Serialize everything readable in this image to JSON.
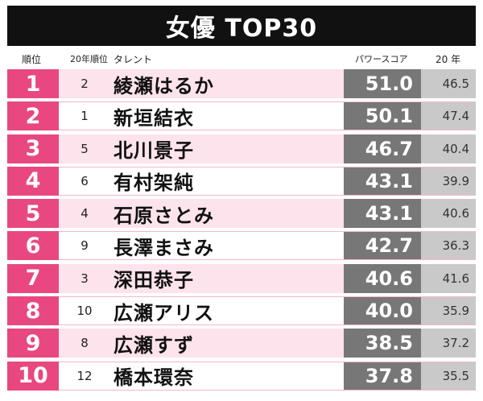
{
  "title": "女優 TOP30",
  "headers": {
    "rank": "順位",
    "prev_rank": "20年順位",
    "talent": "タレント",
    "power": "パワースコア",
    "y20": "20 年"
  },
  "rows": [
    {
      "rank": "1",
      "prev": "2",
      "name": "綾瀬はるか",
      "power": "51.0",
      "y20": "46.5"
    },
    {
      "rank": "2",
      "prev": "1",
      "name": "新垣結衣",
      "power": "50.1",
      "y20": "47.4"
    },
    {
      "rank": "3",
      "prev": "5",
      "name": "北川景子",
      "power": "46.7",
      "y20": "40.4"
    },
    {
      "rank": "4",
      "prev": "6",
      "name": "有村架純",
      "power": "43.1",
      "y20": "39.9"
    },
    {
      "rank": "5",
      "prev": "4",
      "name": "石原さとみ",
      "power": "43.1",
      "y20": "40.6"
    },
    {
      "rank": "6",
      "prev": "9",
      "name": "長澤まさみ",
      "power": "42.7",
      "y20": "36.3"
    },
    {
      "rank": "7",
      "prev": "3",
      "name": "深田恭子",
      "power": "40.6",
      "y20": "41.6"
    },
    {
      "rank": "8",
      "prev": "10",
      "name": "広瀬アリス",
      "power": "40.0",
      "y20": "35.9"
    },
    {
      "rank": "9",
      "prev": "8",
      "name": "広瀬すず",
      "power": "38.5",
      "y20": "37.2"
    },
    {
      "rank": "10",
      "prev": "12",
      "name": "橋本環奈",
      "power": "37.8",
      "y20": "35.5"
    }
  ],
  "colors": {
    "rank_pink": "#e8487f",
    "row_tint": "#fde3ec",
    "power_gray": "#777777",
    "y20_gray": "#c9c9c9",
    "title_black": "#111111"
  }
}
